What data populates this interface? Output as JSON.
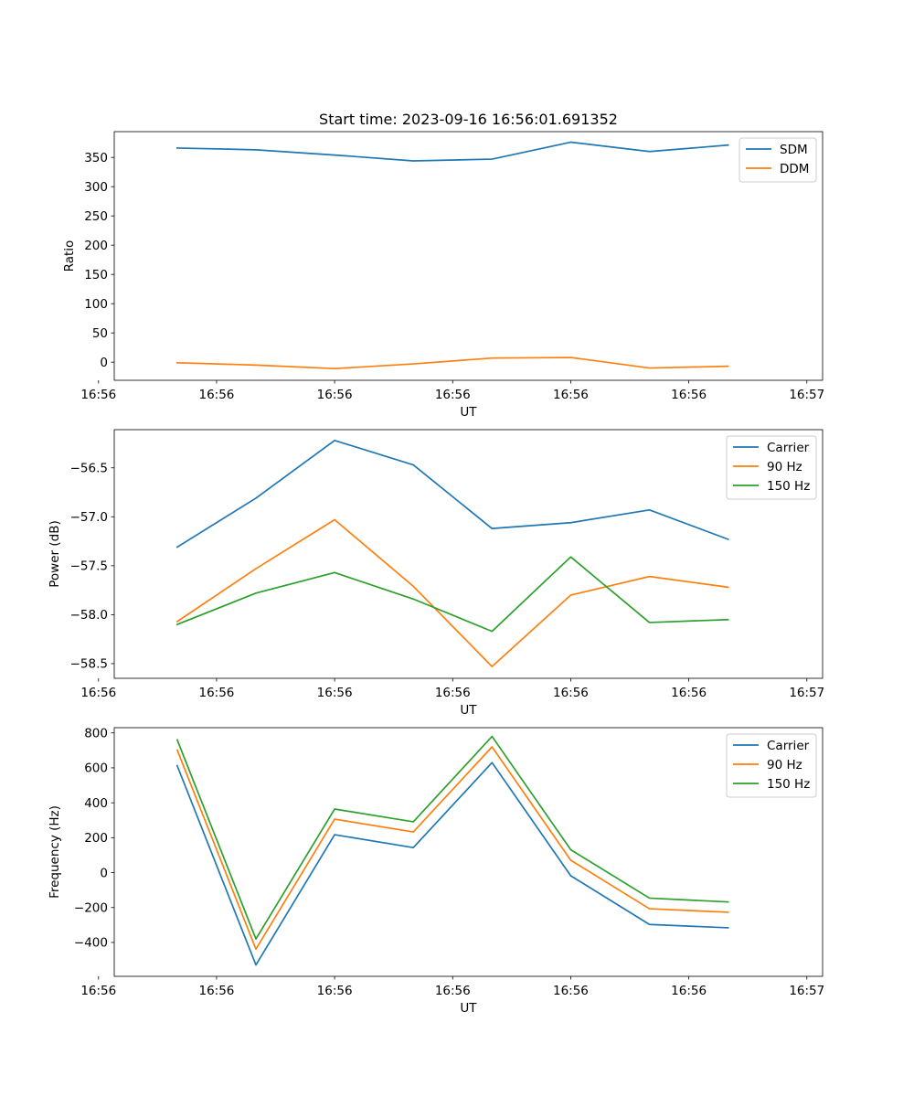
{
  "figure": {
    "title": "Start time: 2023-09-16 16:56:01.691352"
  },
  "colors": {
    "blue": "#1f77b4",
    "orange": "#ff7f0e",
    "green": "#2ca02c"
  },
  "chart_data": [
    {
      "type": "line",
      "title": "Start time: 2023-09-16 16:56:01.691352",
      "xlabel": "UT",
      "ylabel": "Ratio",
      "x": [
        1,
        2,
        3,
        4,
        5,
        6,
        7,
        8
      ],
      "xlim": [
        0.2,
        9.2
      ],
      "xticks": [
        0,
        1.5,
        3,
        4.5,
        6,
        7.5,
        9
      ],
      "xtick_labels": [
        "16:56",
        "16:56",
        "16:56",
        "16:56",
        "16:56",
        "16:56",
        "16:57"
      ],
      "ylim": [
        -31,
        394
      ],
      "yticks": [
        0,
        50,
        100,
        150,
        200,
        250,
        300,
        350
      ],
      "ytick_labels": [
        "0",
        "50",
        "100",
        "150",
        "200",
        "250",
        "300",
        "350"
      ],
      "legend": "upper right",
      "series": [
        {
          "name": "SDM",
          "color": "#1f77b4",
          "values": [
            366,
            363,
            354,
            344,
            347,
            376,
            360,
            371
          ]
        },
        {
          "name": "DDM",
          "color": "#ff7f0e",
          "values": [
            -1,
            -5,
            -11,
            -3,
            7,
            8,
            -10,
            -7
          ]
        }
      ]
    },
    {
      "type": "line",
      "title": "",
      "xlabel": "UT",
      "ylabel": "Power (dB)",
      "x": [
        1,
        2,
        3,
        4,
        5,
        6,
        7,
        8
      ],
      "xlim": [
        0.2,
        9.2
      ],
      "xticks": [
        0,
        1.5,
        3,
        4.5,
        6,
        7.5,
        9
      ],
      "xtick_labels": [
        "16:56",
        "16:56",
        "16:56",
        "16:56",
        "16:56",
        "16:56",
        "16:57"
      ],
      "ylim": [
        -58.65,
        -56.11
      ],
      "yticks": [
        -58.5,
        -58.0,
        -57.5,
        -57.0,
        -56.5
      ],
      "ytick_labels": [
        "−58.5",
        "−58.0",
        "−57.5",
        "−57.0",
        "−56.5"
      ],
      "legend": "upper right",
      "series": [
        {
          "name": "Carrier",
          "color": "#1f77b4",
          "values": [
            -57.31,
            -56.81,
            -56.22,
            -56.47,
            -57.12,
            -57.06,
            -56.93,
            -57.23
          ]
        },
        {
          "name": "90 Hz",
          "color": "#ff7f0e",
          "values": [
            -58.07,
            -57.53,
            -57.03,
            -57.71,
            -58.53,
            -57.8,
            -57.61,
            -57.72
          ]
        },
        {
          "name": "150 Hz",
          "color": "#2ca02c",
          "values": [
            -58.1,
            -57.78,
            -57.57,
            -57.84,
            -58.17,
            -57.41,
            -58.08,
            -58.05
          ]
        }
      ]
    },
    {
      "type": "line",
      "title": "",
      "xlabel": "UT",
      "ylabel": "Frequency (Hz)",
      "x": [
        1,
        2,
        3,
        4,
        5,
        6,
        7,
        8
      ],
      "xlim": [
        0.2,
        9.2
      ],
      "xticks": [
        0,
        1.5,
        3,
        4.5,
        6,
        7.5,
        9
      ],
      "xtick_labels": [
        "16:56",
        "16:56",
        "16:56",
        "16:56",
        "16:56",
        "16:56",
        "16:57"
      ],
      "ylim": [
        -594,
        830
      ],
      "yticks": [
        -400,
        -200,
        0,
        200,
        400,
        600,
        800
      ],
      "ytick_labels": [
        "−400",
        "−200",
        "0",
        "200",
        "400",
        "600",
        "800"
      ],
      "legend": "upper right",
      "series": [
        {
          "name": "Carrier",
          "color": "#1f77b4",
          "values": [
            612,
            -529,
            217,
            143,
            630,
            -18,
            -297,
            -316
          ]
        },
        {
          "name": "90 Hz",
          "color": "#ff7f0e",
          "values": [
            702,
            -438,
            306,
            233,
            720,
            71,
            -207,
            -227
          ]
        },
        {
          "name": "150 Hz",
          "color": "#2ca02c",
          "values": [
            760,
            -380,
            364,
            291,
            780,
            131,
            -146,
            -168
          ]
        }
      ]
    }
  ]
}
